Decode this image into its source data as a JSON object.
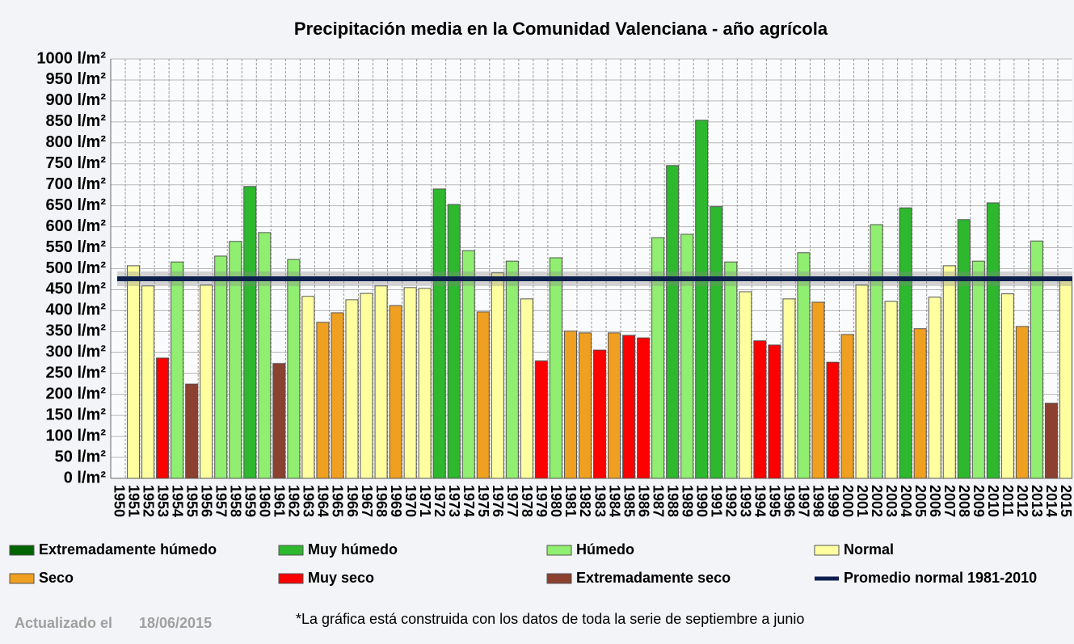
{
  "chart_data": {
    "type": "bar",
    "title": "Precipitación media en la Comunidad Valenciana - año agrícola",
    "categories": [
      "1950",
      "1951",
      "1952",
      "1953",
      "1954",
      "1955",
      "1956",
      "1957",
      "1958",
      "1959",
      "1960",
      "1961",
      "1962",
      "1963",
      "1964",
      "1965",
      "1966",
      "1967",
      "1968",
      "1969",
      "1970",
      "1971",
      "1972",
      "1973",
      "1974",
      "1975",
      "1976",
      "1977",
      "1978",
      "1979",
      "1980",
      "1981",
      "1982",
      "1983",
      "1984",
      "1985",
      "1986",
      "1987",
      "1988",
      "1989",
      "1990",
      "1991",
      "1992",
      "1993",
      "1994",
      "1995",
      "1996",
      "1997",
      "1998",
      "1999",
      "2000",
      "2001",
      "2002",
      "2003",
      "2004",
      "2005",
      "2006",
      "2007",
      "2008",
      "2009",
      "2010",
      "2011",
      "2012",
      "2013",
      "2014",
      "2015"
    ],
    "values": [
      null,
      507,
      459,
      287,
      516,
      225,
      461,
      530,
      565,
      696,
      586,
      274,
      522,
      434,
      372,
      395,
      426,
      441,
      459,
      412,
      455,
      453,
      690,
      653,
      543,
      397,
      490,
      518,
      428,
      280,
      526,
      351,
      347,
      306,
      347,
      341,
      335,
      574,
      746,
      582,
      854,
      648,
      516,
      445,
      328,
      318,
      428,
      538,
      420,
      277,
      343,
      461,
      605,
      422,
      645,
      357,
      432,
      507,
      617,
      518,
      657,
      440,
      362,
      566,
      179,
      476
    ],
    "colors": [
      null,
      "#ffffa0",
      "#ffffa0",
      "#ff0000",
      "#90ee70",
      "#8b4030",
      "#ffffa0",
      "#90ee70",
      "#90ee70",
      "#2db82d",
      "#90ee70",
      "#8b4030",
      "#90ee70",
      "#ffffa0",
      "#f0a020",
      "#f0a020",
      "#ffffa0",
      "#ffffa0",
      "#ffffa0",
      "#f0a020",
      "#ffffa0",
      "#ffffa0",
      "#2db82d",
      "#2db82d",
      "#90ee70",
      "#f0a020",
      "#ffffa0",
      "#90ee70",
      "#ffffa0",
      "#ff0000",
      "#90ee70",
      "#f0a020",
      "#f0a020",
      "#ff0000",
      "#f0a020",
      "#ff0000",
      "#ff0000",
      "#90ee70",
      "#2db82d",
      "#90ee70",
      "#2db82d",
      "#2db82d",
      "#90ee70",
      "#ffffa0",
      "#ff0000",
      "#ff0000",
      "#ffffa0",
      "#90ee70",
      "#f0a020",
      "#ff0000",
      "#f0a020",
      "#ffffa0",
      "#90ee70",
      "#ffffa0",
      "#2db82d",
      "#f0a020",
      "#ffffa0",
      "#ffffa0",
      "#2db82d",
      "#90ee70",
      "#2db82d",
      "#ffffa0",
      "#f0a020",
      "#90ee70",
      "#8b4030",
      "#ffffa0"
    ],
    "legend": [
      {
        "name": "Extremadamente húmedo",
        "color": "#006400"
      },
      {
        "name": "Muy húmedo",
        "color": "#2db82d"
      },
      {
        "name": "Húmedo",
        "color": "#90ee70"
      },
      {
        "name": "Normal",
        "color": "#ffffa0"
      },
      {
        "name": "Seco",
        "color": "#f0a020"
      },
      {
        "name": "Muy seco",
        "color": "#ff0000"
      },
      {
        "name": "Extremadamente seco",
        "color": "#8b4030"
      }
    ],
    "normal": {
      "name": "Promedio normal 1981-2010",
      "value": 476,
      "color": "#0d1f4d"
    },
    "ylim": [
      0,
      1000
    ],
    "yticks": [
      {
        "value": 0,
        "label": "0 l/m²"
      },
      {
        "value": 50,
        "label": "50 l/m²"
      },
      {
        "value": 100,
        "label": "100 l/m²"
      },
      {
        "value": 150,
        "label": "150 l/m²"
      },
      {
        "value": 200,
        "label": "200 l/m²"
      },
      {
        "value": 250,
        "label": "250 l/m²"
      },
      {
        "value": 300,
        "label": "300 l/m²"
      },
      {
        "value": 350,
        "label": "350 l/m²"
      },
      {
        "value": 400,
        "label": "400 l/m²"
      },
      {
        "value": 450,
        "label": "450 l/m²"
      },
      {
        "value": 500,
        "label": "500 l/m²"
      },
      {
        "value": 550,
        "label": "550 l/m²"
      },
      {
        "value": 600,
        "label": "600 l/m²"
      },
      {
        "value": 650,
        "label": "650 l/m²"
      },
      {
        "value": 700,
        "label": "700 l/m²"
      },
      {
        "value": 750,
        "label": "750 l/m²"
      },
      {
        "value": 800,
        "label": "800 l/m²"
      },
      {
        "value": 850,
        "label": "850 l/m²"
      },
      {
        "value": 900,
        "label": "900 l/m²"
      },
      {
        "value": 950,
        "label": "950 l/m²"
      },
      {
        "value": 1000,
        "label": "1000 l/m²"
      }
    ],
    "grid": true,
    "updated_label": "Actualizado el",
    "updated_date": "18/06/2015",
    "footnote": "*La gráfica está construida con los datos de toda la serie de septiembre a junio"
  }
}
